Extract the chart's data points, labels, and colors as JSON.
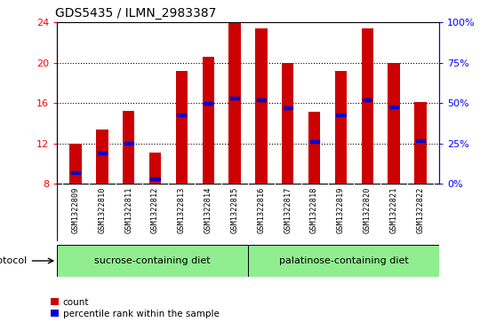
{
  "title": "GDS5435 / ILMN_2983387",
  "samples": [
    "GSM1322809",
    "GSM1322810",
    "GSM1322811",
    "GSM1322812",
    "GSM1322813",
    "GSM1322814",
    "GSM1322815",
    "GSM1322816",
    "GSM1322817",
    "GSM1322818",
    "GSM1322819",
    "GSM1322820",
    "GSM1322821",
    "GSM1322822"
  ],
  "count_values": [
    12.0,
    13.4,
    15.2,
    11.1,
    19.2,
    20.6,
    24.0,
    23.4,
    20.0,
    15.1,
    19.2,
    23.4,
    20.0,
    16.1
  ],
  "percentile_values": [
    9.1,
    11.0,
    12.0,
    8.5,
    14.8,
    16.0,
    16.5,
    16.3,
    15.5,
    12.2,
    14.8,
    16.3,
    15.6,
    12.3
  ],
  "ymin": 8,
  "ymax": 24,
  "yticks": [
    8,
    12,
    16,
    20,
    24
  ],
  "y2min": 0,
  "y2max": 100,
  "y2ticks": [
    0,
    25,
    50,
    75,
    100
  ],
  "y2ticklabels": [
    "0%",
    "25%",
    "50%",
    "75%",
    "100%"
  ],
  "bar_color": "#cc0000",
  "marker_color": "#0000cc",
  "bar_width": 0.45,
  "sucrose_label": "sucrose-containing diet",
  "palatinose_label": "palatinose-containing diet",
  "protocol_label": "protocol",
  "sucrose_count": 7,
  "sucrose_color": "#90ee90",
  "palatinose_color": "#90ee90",
  "sample_bg_color": "#d3d3d3",
  "legend_count": "count",
  "legend_percentile": "percentile rank within the sample",
  "title_fontsize": 10,
  "tick_fontsize": 8,
  "label_fontsize": 7
}
